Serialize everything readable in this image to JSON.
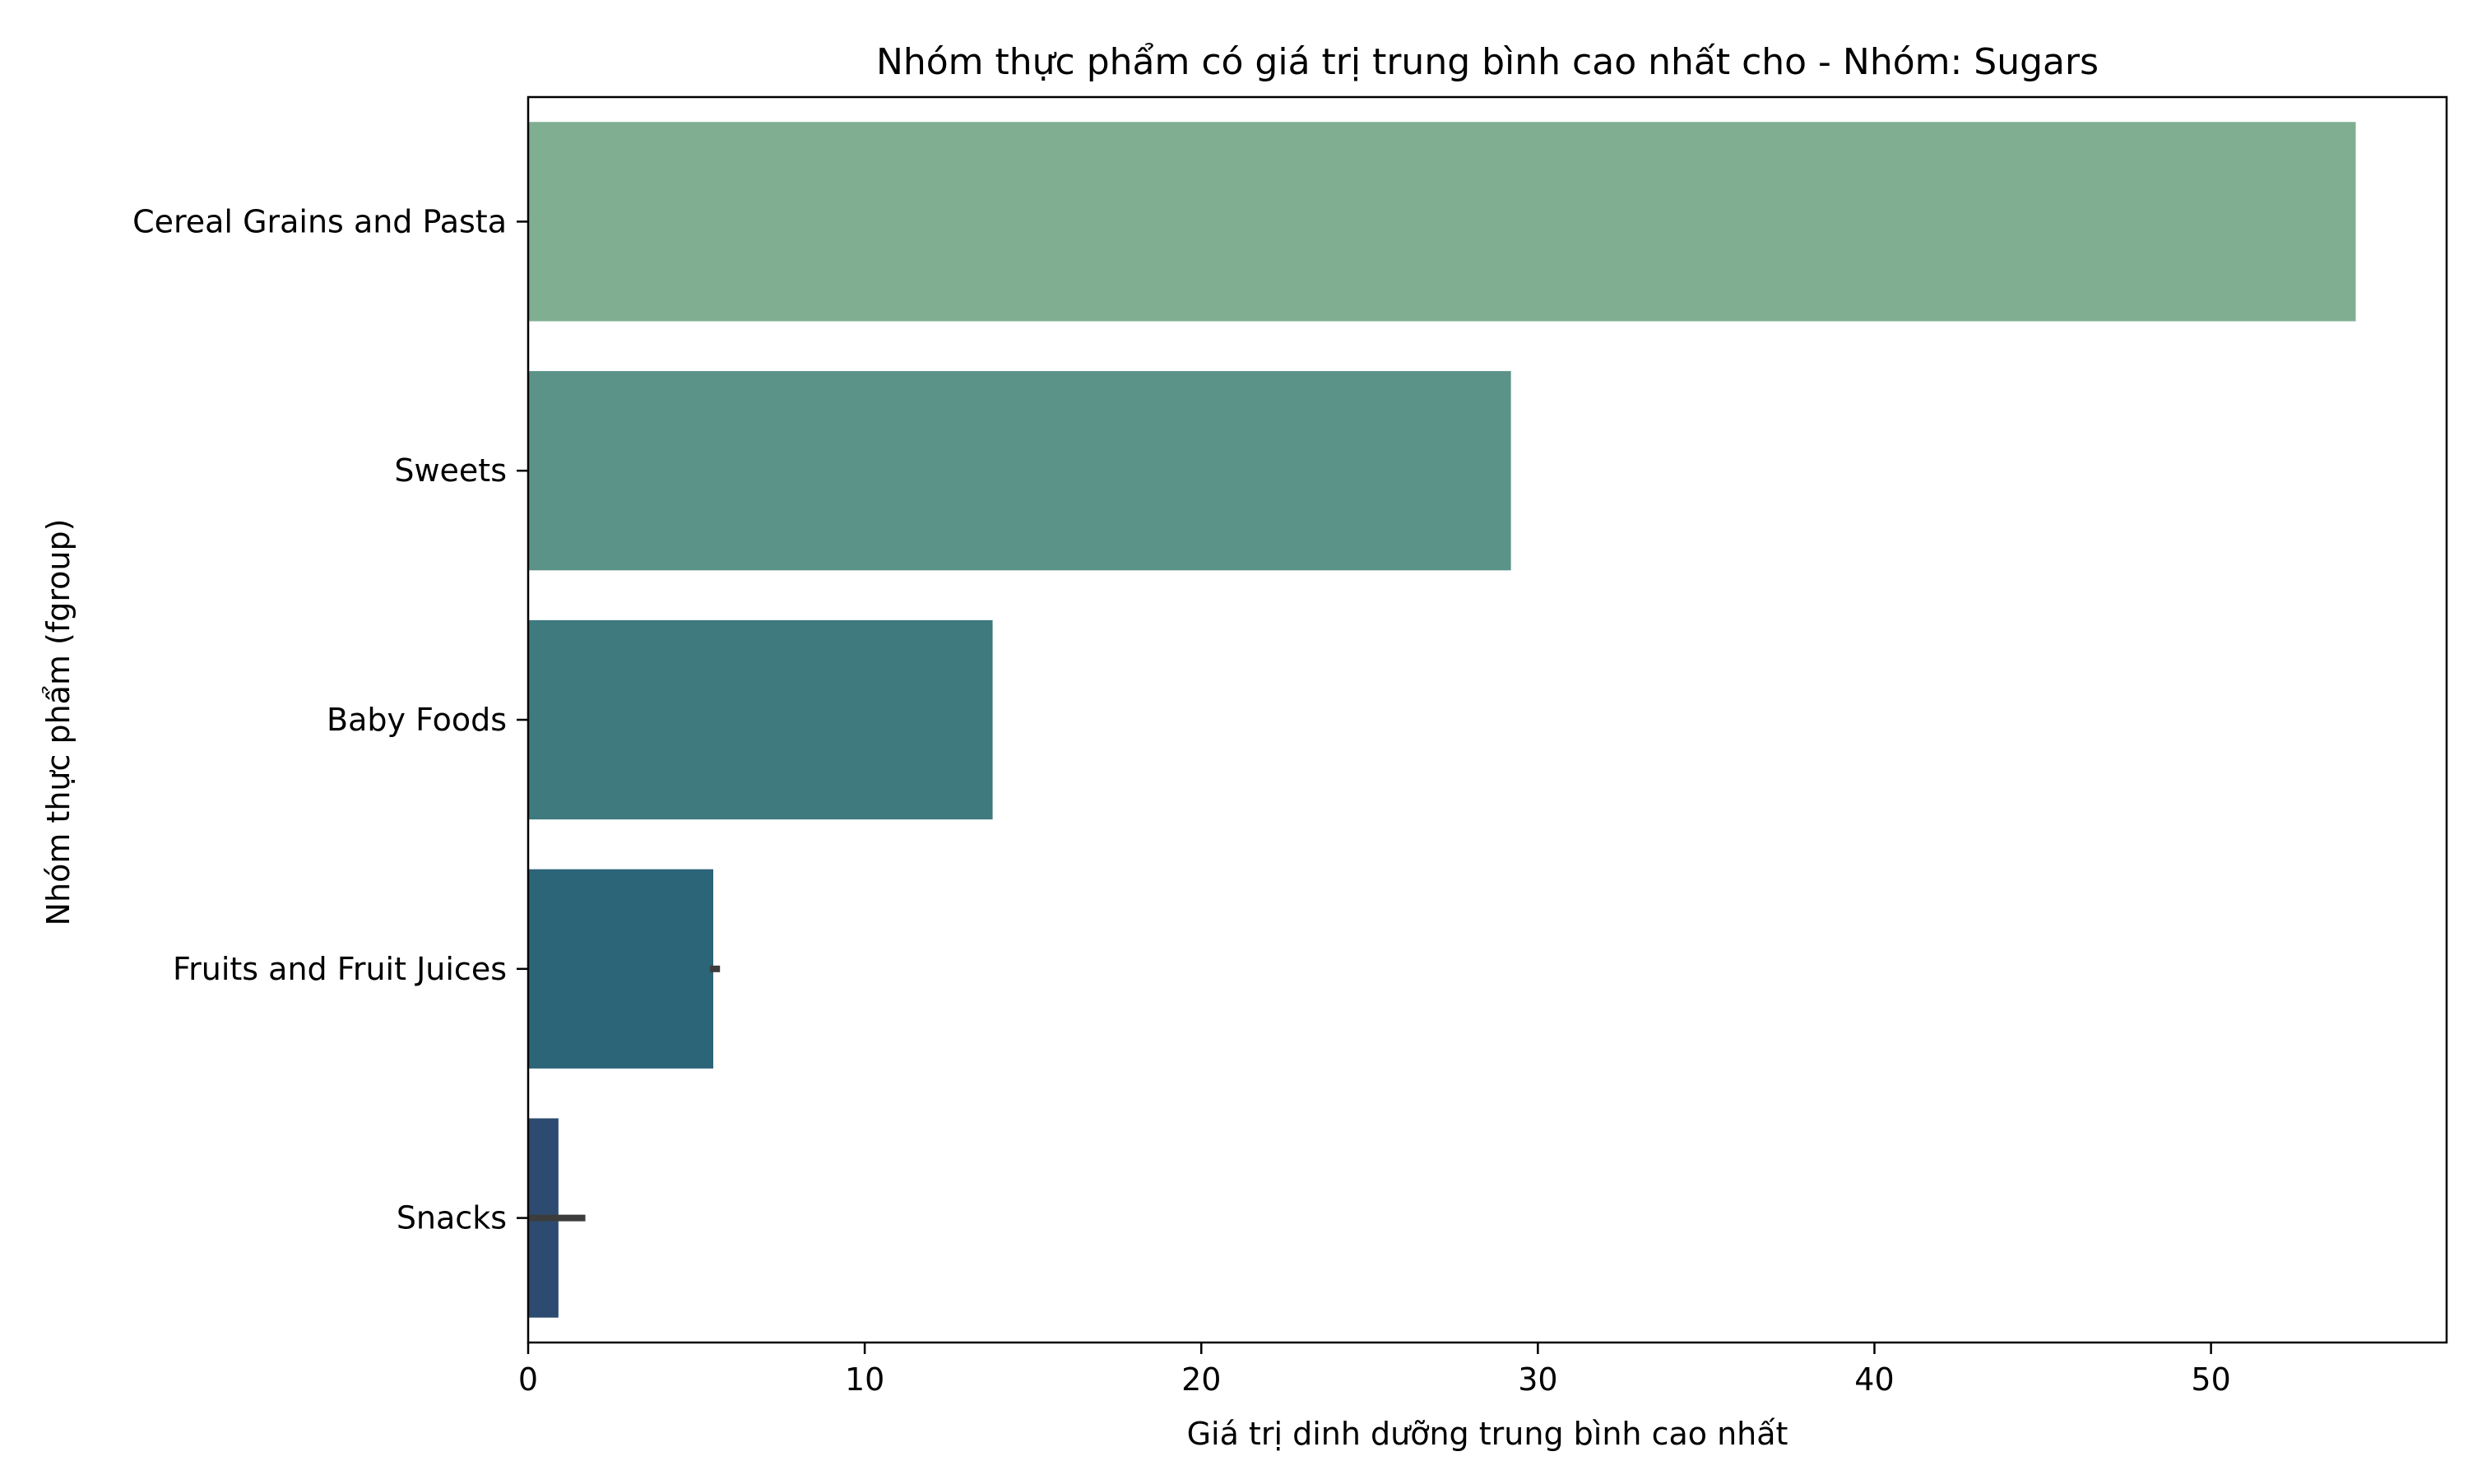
{
  "chart_data": {
    "type": "bar",
    "orientation": "horizontal",
    "title": "Nhóm thực phẩm có giá trị trung bình cao nhất cho - Nhóm: Sugars",
    "xlabel": "Giá trị dinh dưỡng trung bình cao nhất",
    "ylabel": "Nhóm thực phẩm (fgroup)",
    "categories": [
      "Cereal Grains and Pasta",
      "Sweets",
      "Baby Foods",
      "Fruits and Fruit Juices",
      "Snacks"
    ],
    "values": [
      54.3,
      29.2,
      13.8,
      5.5,
      0.9
    ],
    "error_bars": [
      null,
      null,
      null,
      [
        5.4,
        5.7
      ],
      [
        0.0,
        1.7
      ]
    ],
    "xlim": [
      0,
      57
    ],
    "xticks": [
      0,
      10,
      20,
      30,
      40,
      50
    ],
    "colors": [
      "#7fae90",
      "#5b9388",
      "#3e7a7e",
      "#2c6478",
      "#2d4b70"
    ],
    "grid": false
  }
}
